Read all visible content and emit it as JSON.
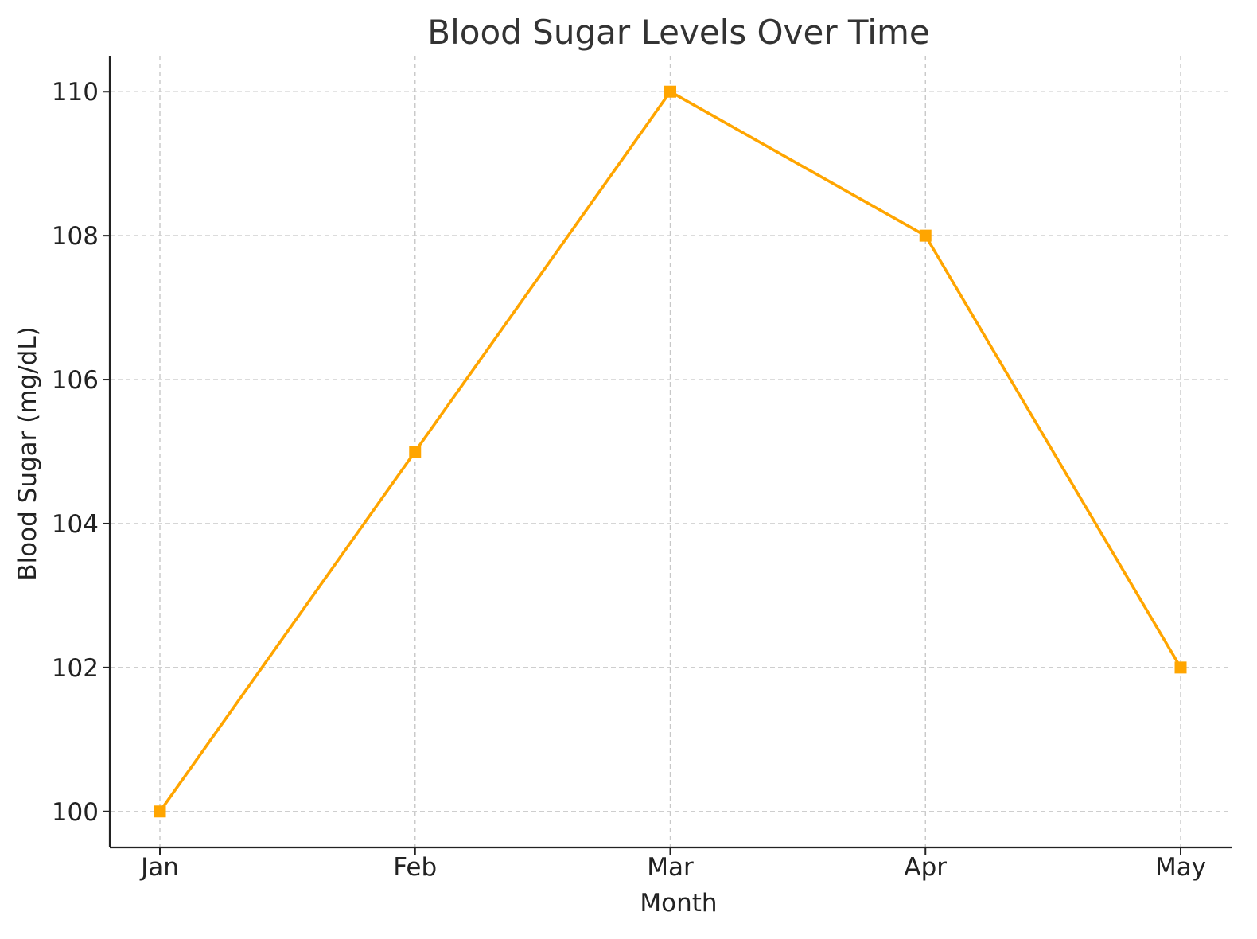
{
  "chart_data": {
    "type": "line",
    "title": "Blood Sugar Levels Over Time",
    "xlabel": "Month",
    "ylabel": "Blood Sugar (mg/dL)",
    "categories": [
      "Jan",
      "Feb",
      "Mar",
      "Apr",
      "May"
    ],
    "series": [
      {
        "values": [
          100,
          105,
          110,
          108,
          102
        ],
        "color": "#ffa500",
        "marker": "square"
      }
    ],
    "yticks": [
      100,
      102,
      104,
      106,
      108,
      110
    ],
    "ytick_labels": [
      "100",
      "102",
      "104",
      "106",
      "108",
      "110"
    ],
    "ylim": [
      99.5,
      110.5
    ],
    "grid": true,
    "colors": {
      "line": "#ffa500",
      "grid": "#c8c8c8",
      "axis": "#222222",
      "title": "#333333"
    }
  }
}
